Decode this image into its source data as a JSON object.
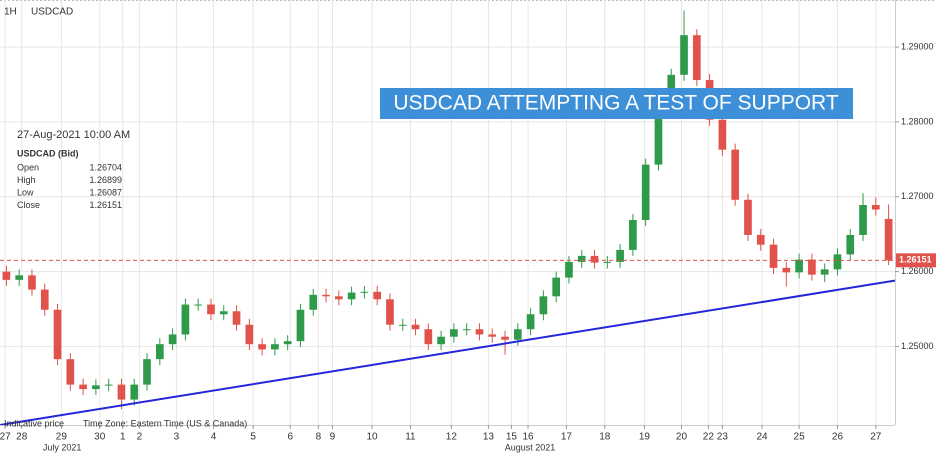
{
  "chart_data": {
    "type": "candlestick",
    "interval": "1H",
    "symbol": "USDCAD",
    "title": "USDCAD  ATTEMPTING A TEST OF SUPPORT",
    "info": {
      "datetime": "27-Aug-2021 10:00 AM",
      "instrument": "USDCAD (Bid)",
      "labels": [
        "Open",
        "High",
        "Low",
        "Close"
      ]
    },
    "footer": [
      "Indicative price",
      "Time Zone: Eastern Time (US & Canada)"
    ],
    "months": [
      {
        "value": 4.7,
        "label": "July 2021"
      },
      {
        "value": 41.3,
        "label": "August 2021"
      }
    ],
    "up_color": "#2f9a4a",
    "down_color": "#e0524a",
    "grid": true,
    "ylim": [
      1.2395,
      1.2963
    ],
    "yticks": [
      {
        "value": 1.25,
        "label": "1.25000"
      },
      {
        "value": 1.26,
        "label": "1.26000"
      },
      {
        "value": 1.27,
        "label": "1.27000"
      },
      {
        "value": 1.28,
        "label": "1.28000"
      },
      {
        "value": 1.29,
        "label": "1.29000"
      }
    ],
    "xlim": [
      0,
      70
    ],
    "xticks": [
      {
        "value": 0.4,
        "label": "27"
      },
      {
        "value": 1.7,
        "label": "28"
      },
      {
        "value": 4.8,
        "label": "29"
      },
      {
        "value": 7.8,
        "label": "30"
      },
      {
        "value": 9.6,
        "label": "1"
      },
      {
        "value": 10.9,
        "label": "2"
      },
      {
        "value": 13.8,
        "label": "3"
      },
      {
        "value": 16.7,
        "label": "4"
      },
      {
        "value": 19.8,
        "label": "5"
      },
      {
        "value": 22.7,
        "label": "6"
      },
      {
        "value": 24.9,
        "label": "8"
      },
      {
        "value": 26,
        "label": "9"
      },
      {
        "value": 29.1,
        "label": "10"
      },
      {
        "value": 32.1,
        "label": "11"
      },
      {
        "value": 35.3,
        "label": "12"
      },
      {
        "value": 38.2,
        "label": "13"
      },
      {
        "value": 40,
        "label": "15"
      },
      {
        "value": 41.3,
        "label": "16"
      },
      {
        "value": 44.3,
        "label": "17"
      },
      {
        "value": 47.3,
        "label": "18"
      },
      {
        "value": 50.4,
        "label": "19"
      },
      {
        "value": 53.3,
        "label": "20"
      },
      {
        "value": 55.4,
        "label": "22"
      },
      {
        "value": 56.5,
        "label": "23"
      },
      {
        "value": 59.6,
        "label": "24"
      },
      {
        "value": 62.5,
        "label": "25"
      },
      {
        "value": 65.5,
        "label": "26"
      },
      {
        "value": 68.5,
        "label": "27"
      }
    ],
    "trendline": {
      "x": [
        0,
        70
      ],
      "y": [
        1.2395,
        1.2588
      ],
      "color": "#2525d9"
    },
    "candles": {
      "open": [
        1.26,
        1.2589,
        1.2595,
        1.2576,
        1.2549,
        1.2483,
        1.2449,
        1.2443,
        1.2448,
        1.2449,
        1.2429,
        1.2449,
        1.2483,
        1.2503,
        1.2516,
        1.2556,
        1.2556,
        1.2543,
        1.2547,
        1.2529,
        1.2503,
        1.2496,
        1.2503,
        1.2507,
        1.2549,
        1.2569,
        1.2567,
        1.2563,
        1.2572,
        1.2573,
        1.2563,
        1.2529,
        1.2529,
        1.2523,
        1.2503,
        1.2513,
        1.2523,
        1.2523,
        1.2516,
        1.2513,
        1.2509,
        1.2523,
        1.2543,
        1.2567,
        1.2592,
        1.2613,
        1.2621,
        1.2612,
        1.2613,
        1.2629,
        1.2669,
        1.2743,
        1.2816,
        1.2863,
        1.2916,
        1.2856,
        1.2803,
        1.2763,
        1.2696,
        1.2649,
        1.2636,
        1.2605,
        1.2599,
        1.2616,
        1.2596,
        1.2603,
        1.2623,
        1.2649,
        1.2689,
        1.26704
      ],
      "high": [
        1.2608,
        1.2603,
        1.2603,
        1.2584,
        1.2557,
        1.2491,
        1.2457,
        1.2456,
        1.2457,
        1.2457,
        1.2457,
        1.2491,
        1.2511,
        1.2524,
        1.2564,
        1.2564,
        1.2564,
        1.2555,
        1.2555,
        1.2537,
        1.2511,
        1.2511,
        1.2515,
        1.2557,
        1.2577,
        1.2577,
        1.2575,
        1.258,
        1.2581,
        1.2581,
        1.2571,
        1.2537,
        1.2537,
        1.2531,
        1.2521,
        1.2531,
        1.2531,
        1.2531,
        1.2524,
        1.2521,
        1.2531,
        1.2551,
        1.2575,
        1.26,
        1.2621,
        1.2629,
        1.2629,
        1.2621,
        1.2637,
        1.2677,
        1.2751,
        1.2824,
        1.2871,
        1.2949,
        1.2924,
        1.2864,
        1.2811,
        1.2771,
        1.2704,
        1.2657,
        1.2644,
        1.2613,
        1.2624,
        1.2624,
        1.2611,
        1.2631,
        1.2657,
        1.2705,
        1.2699,
        1.26899
      ],
      "low": [
        1.2581,
        1.2581,
        1.2568,
        1.2541,
        1.2475,
        1.2441,
        1.2435,
        1.2435,
        1.244,
        1.2416,
        1.2421,
        1.2441,
        1.2475,
        1.2495,
        1.2508,
        1.2548,
        1.2535,
        1.2535,
        1.2521,
        1.2495,
        1.2488,
        1.2488,
        1.2495,
        1.2499,
        1.2541,
        1.2559,
        1.2555,
        1.2555,
        1.2564,
        1.2555,
        1.2521,
        1.2521,
        1.2515,
        1.2495,
        1.2495,
        1.2505,
        1.2515,
        1.2508,
        1.2505,
        1.2489,
        1.2501,
        1.2515,
        1.2535,
        1.2559,
        1.2584,
        1.2605,
        1.2604,
        1.2604,
        1.2605,
        1.2621,
        1.2661,
        1.2735,
        1.2808,
        1.2855,
        1.2848,
        1.2795,
        1.2755,
        1.2688,
        1.2641,
        1.2628,
        1.2597,
        1.258,
        1.2591,
        1.2588,
        1.2586,
        1.2595,
        1.2615,
        1.2641,
        1.2675,
        1.26087
      ],
      "close": [
        1.2589,
        1.2595,
        1.2576,
        1.2549,
        1.2483,
        1.2449,
        1.2443,
        1.2448,
        1.2449,
        1.2429,
        1.2449,
        1.2483,
        1.2503,
        1.2516,
        1.2556,
        1.2556,
        1.2543,
        1.2547,
        1.2529,
        1.2503,
        1.2496,
        1.2503,
        1.2507,
        1.2549,
        1.2569,
        1.2567,
        1.2563,
        1.2572,
        1.2573,
        1.2563,
        1.2529,
        1.2529,
        1.2523,
        1.2503,
        1.2513,
        1.2523,
        1.2523,
        1.2516,
        1.2513,
        1.2509,
        1.2523,
        1.2543,
        1.2567,
        1.2592,
        1.2613,
        1.2621,
        1.2612,
        1.2613,
        1.2629,
        1.2669,
        1.2743,
        1.2816,
        1.2863,
        1.2916,
        1.2856,
        1.2803,
        1.2763,
        1.2696,
        1.2649,
        1.2636,
        1.2605,
        1.2599,
        1.2616,
        1.2596,
        1.2603,
        1.2623,
        1.2649,
        1.2689,
        1.2683,
        1.26151
      ]
    }
  }
}
